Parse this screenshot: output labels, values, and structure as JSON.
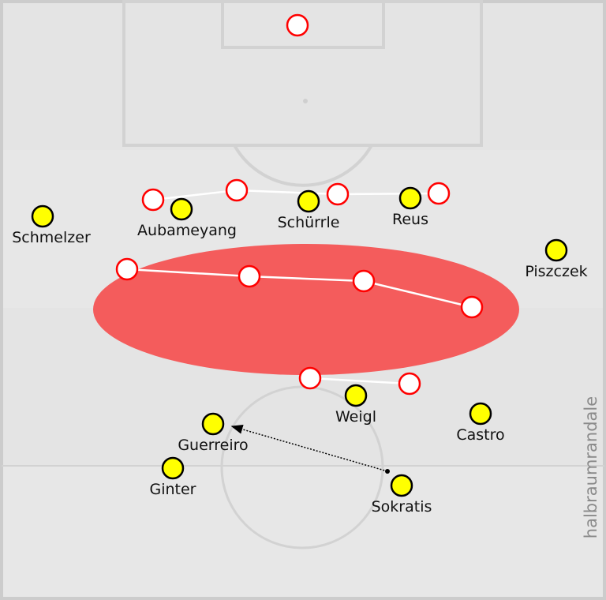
{
  "colors": {
    "pitch": "#e4e4e4",
    "lines": "#d2d2d2",
    "team_yellow": "#ffff00",
    "opponent_stroke": "#ff0000",
    "zone": "#f45c5c",
    "watermark": "#8a8a8a"
  },
  "watermark": "halbraumrandale",
  "team": [
    {
      "name": "Schmelzer"
    },
    {
      "name": "Aubameyang"
    },
    {
      "name": "Schürrle"
    },
    {
      "name": "Reus"
    },
    {
      "name": "Piszczek"
    },
    {
      "name": "Weigl"
    },
    {
      "name": "Castro"
    },
    {
      "name": "Guerreiro"
    },
    {
      "name": "Ginter"
    },
    {
      "name": "Sokratis"
    }
  ]
}
